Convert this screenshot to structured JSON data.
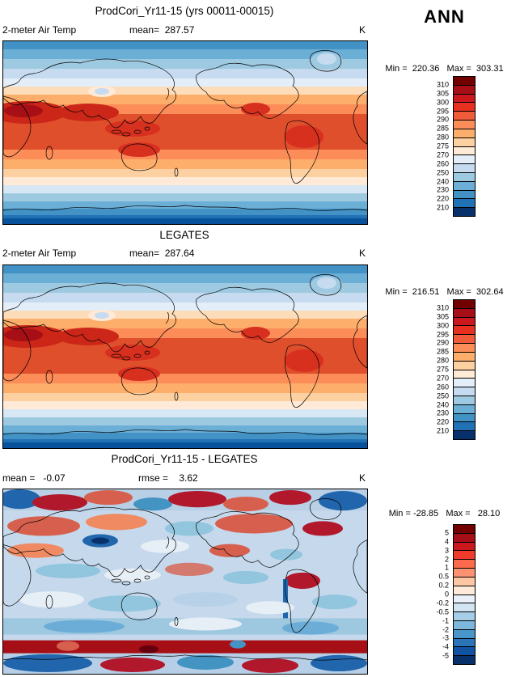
{
  "season_label": "ANN",
  "panels": [
    {
      "title": "ProdCori_Yr11-15 (yrs 00011-00015)",
      "field_label": "2-meter Air Temp",
      "mean_label": "mean=  287.57",
      "units": "K",
      "min_max_label": "Min =  220.36   Max =  303.31",
      "colorbar": {
        "ticks": [
          "310",
          "305",
          "300",
          "295",
          "290",
          "285",
          "280",
          "275",
          "270",
          "260",
          "250",
          "240",
          "230",
          "220",
          "210"
        ],
        "colors": [
          "#730000",
          "#a50f15",
          "#cb181d",
          "#e7301f",
          "#f05b3a",
          "#fc8d59",
          "#fdae6b",
          "#fdd0a2",
          "#feead6",
          "#e3eef8",
          "#c6dbef",
          "#9ecae1",
          "#6baed6",
          "#4292c6",
          "#2171b5",
          "#08306b"
        ]
      }
    },
    {
      "title": "LEGATES",
      "field_label": "2-meter Air Temp",
      "mean_label": "mean=  287.64",
      "units": "K",
      "min_max_label": "Min =  216.51   Max =  302.64",
      "colorbar": {
        "ticks": [
          "310",
          "305",
          "300",
          "295",
          "290",
          "285",
          "280",
          "275",
          "270",
          "260",
          "250",
          "240",
          "230",
          "220",
          "210"
        ],
        "colors": [
          "#730000",
          "#a50f15",
          "#cb181d",
          "#e7301f",
          "#f05b3a",
          "#fc8d59",
          "#fdae6b",
          "#fdd0a2",
          "#feead6",
          "#e3eef8",
          "#c6dbef",
          "#9ecae1",
          "#6baed6",
          "#4292c6",
          "#2171b5",
          "#08306b"
        ]
      }
    },
    {
      "title": "ProdCori_Yr11-15 - LEGATES",
      "mean_label": "mean =   -0.07",
      "rmse_label": "rmse =    3.62",
      "units": "K",
      "min_max_label": "Min = -28.85   Max =   28.10",
      "colorbar": {
        "ticks": [
          "5",
          "4",
          "3",
          "2",
          "1",
          "0.5",
          "0.2",
          "0",
          "-0.2",
          "-0.5",
          "-1",
          "-2",
          "-3",
          "-4",
          "-5"
        ],
        "colors": [
          "#730000",
          "#a50f15",
          "#cb181d",
          "#ef3b2c",
          "#fb6a4a",
          "#fc9272",
          "#fdc7a4",
          "#feeada",
          "#e9f0f7",
          "#d3e4f3",
          "#a6cee8",
          "#7db8dc",
          "#4896ca",
          "#2b74b8",
          "#1252a3",
          "#08306b"
        ]
      }
    }
  ],
  "chart_data": [
    {
      "type": "heatmap",
      "panel": "top",
      "title": "ProdCori_Yr11-15 (yrs 00011-00015)",
      "variable": "2-meter Air Temp",
      "season": "ANN",
      "units": "K",
      "mean": 287.57,
      "min": 220.36,
      "max": 303.31,
      "contour_levels": [
        210,
        220,
        230,
        240,
        250,
        260,
        270,
        275,
        280,
        285,
        290,
        295,
        300,
        305,
        310
      ],
      "description": "Global filled-contour map of annual-mean 2-meter air temperature from model run, warm reds in tropics, blues at poles"
    },
    {
      "type": "heatmap",
      "panel": "middle",
      "title": "LEGATES",
      "variable": "2-meter Air Temp",
      "season": "ANN",
      "units": "K",
      "mean": 287.64,
      "min": 216.51,
      "max": 302.64,
      "contour_levels": [
        210,
        220,
        230,
        240,
        250,
        260,
        270,
        275,
        280,
        285,
        290,
        295,
        300,
        305,
        310
      ],
      "description": "Global filled-contour map of annual-mean 2-meter air temperature from LEGATES observations"
    },
    {
      "type": "heatmap",
      "panel": "bottom",
      "title": "ProdCori_Yr11-15 - LEGATES",
      "variable": "2-meter Air Temp difference (model minus obs)",
      "units": "K",
      "mean": -0.07,
      "rmse": 3.62,
      "min": -28.85,
      "max": 28.1,
      "contour_levels": [
        -5,
        -4,
        -3,
        -2,
        -1,
        -0.5,
        -0.2,
        0,
        0.2,
        0.5,
        1,
        2,
        3,
        4,
        5
      ],
      "description": "Global difference map, mottled red/blue anomalies with strong dark-red circumpolar band near Antarctica"
    }
  ]
}
